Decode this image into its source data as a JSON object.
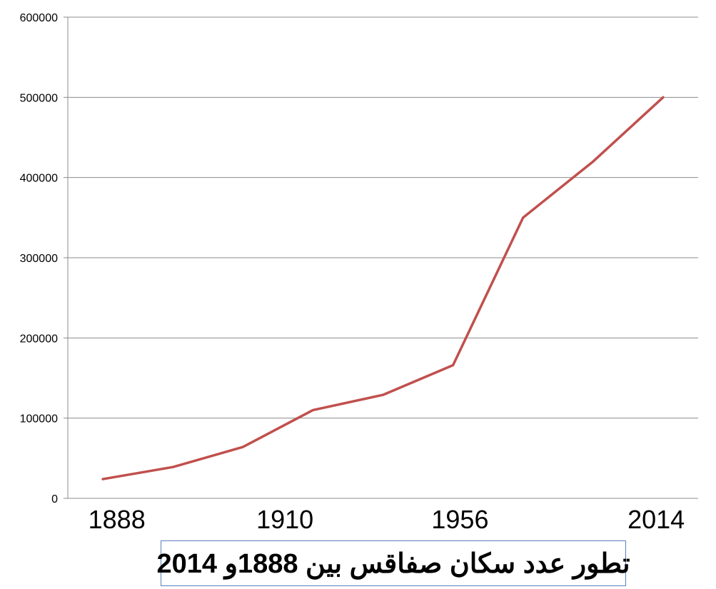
{
  "chart_data": {
    "type": "line",
    "title": "تطور عدد سكان صفاقس بين 1888و 2014",
    "xlabel": "",
    "ylabel": "",
    "x_tick_labels": [
      {
        "label": "1888",
        "index": 0.2
      },
      {
        "label": "1910",
        "index": 2.6
      },
      {
        "label": "1956",
        "index": 5.1
      },
      {
        "label": "2014",
        "index": 7.9
      }
    ],
    "ylim": [
      0,
      600000
    ],
    "yticks": [
      "0",
      "100000",
      "200000",
      "300000",
      "400000",
      "500000",
      "600000"
    ],
    "grid": true,
    "legend": "none",
    "series": [
      {
        "color": "#c0504d",
        "values": [
          24000,
          39000,
          64000,
          110000,
          129000,
          166000,
          350000,
          420000,
          500000
        ]
      }
    ]
  }
}
